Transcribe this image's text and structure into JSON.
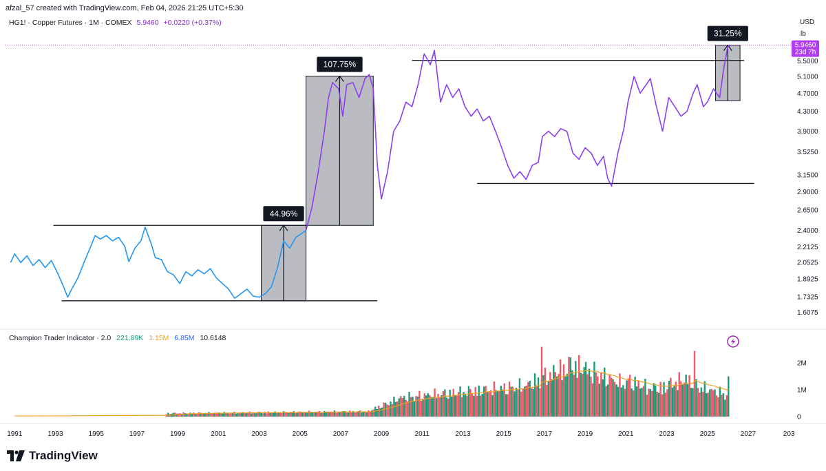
{
  "credit": "afzal_57 created with TradingView.com, Feb 04, 2026 21:25 UTC+5:30",
  "legend": {
    "symbol": "HG1! · Copper Futures · 1M · COMEX",
    "price": "5.9460",
    "change": "+0.0220 (+0.37%)"
  },
  "currency": "USD",
  "unit": "lb",
  "price_tag": {
    "price": "5.9460",
    "countdown": "23d 7h",
    "color": "#b23cf0"
  },
  "indicator_legend": {
    "name": "Champion Trader Indicator · 2.0",
    "v1": "221.89K",
    "v2": "1.15M",
    "v3": "6.85M",
    "v4": "10.6148",
    "v1_color": "#1a9b7a",
    "v2_color": "#f0a020",
    "v3_color": "#2962ff"
  },
  "brand": "TradingView",
  "chart_data": [
    {
      "type": "line",
      "title": "HG1! · Copper Futures · 1M · COMEX",
      "y_scale": "log",
      "y_ticks": [
        "5.9460",
        "5.5000",
        "5.1000",
        "4.7000",
        "4.3000",
        "3.9000",
        "3.5250",
        "3.1500",
        "2.9000",
        "2.6500",
        "2.4000",
        "2.2125",
        "2.0525",
        "1.8925",
        "1.7325",
        "1.6075"
      ],
      "x_ticks": [
        "1991",
        "1993",
        "1995",
        "1997",
        "1999",
        "2001",
        "2003",
        "2005",
        "2007",
        "2009",
        "2011",
        "2013",
        "2015",
        "2017",
        "2019",
        "2021",
        "2023",
        "2025",
        "2027",
        "203"
      ],
      "ylim": [
        1.52,
        6.1
      ],
      "series": [
        {
          "color": "#2196f3",
          "points": [
            [
              1990.8,
              2.05
            ],
            [
              1991.0,
              2.14
            ],
            [
              1991.3,
              2.05
            ],
            [
              1991.6,
              2.12
            ],
            [
              1991.9,
              2.02
            ],
            [
              1992.2,
              2.08
            ],
            [
              1992.5,
              2.0
            ],
            [
              1992.8,
              2.07
            ],
            [
              1993.1,
              1.95
            ],
            [
              1993.4,
              1.82
            ],
            [
              1993.6,
              1.73
            ],
            [
              1993.8,
              1.8
            ],
            [
              1994.1,
              1.9
            ],
            [
              1994.4,
              2.05
            ],
            [
              1994.7,
              2.2
            ],
            [
              1994.95,
              2.34
            ],
            [
              1995.2,
              2.3
            ],
            [
              1995.5,
              2.34
            ],
            [
              1995.8,
              2.28
            ],
            [
              1996.1,
              2.32
            ],
            [
              1996.4,
              2.22
            ],
            [
              1996.6,
              2.06
            ],
            [
              1996.9,
              2.2
            ],
            [
              1997.2,
              2.28
            ],
            [
              1997.4,
              2.44
            ],
            [
              1997.7,
              2.25
            ],
            [
              1997.9,
              2.1
            ],
            [
              1998.2,
              2.08
            ],
            [
              1998.5,
              1.96
            ],
            [
              1998.8,
              1.93
            ],
            [
              1999.1,
              1.85
            ],
            [
              1999.4,
              1.96
            ],
            [
              1999.7,
              1.92
            ],
            [
              2000.0,
              1.98
            ],
            [
              2000.3,
              1.94
            ],
            [
              2000.6,
              1.99
            ],
            [
              2000.9,
              1.9
            ],
            [
              2001.2,
              1.85
            ],
            [
              2001.5,
              1.8
            ],
            [
              2001.8,
              1.72
            ],
            [
              2002.1,
              1.76
            ],
            [
              2002.4,
              1.8
            ],
            [
              2002.7,
              1.74
            ],
            [
              2003.0,
              1.73
            ],
            [
              2003.3,
              1.76
            ],
            [
              2003.6,
              1.82
            ],
            [
              2003.9,
              2.0
            ],
            [
              2004.2,
              2.28
            ],
            [
              2004.5,
              2.2
            ],
            [
              2004.8,
              2.32
            ],
            [
              2005.0,
              2.35
            ],
            [
              2005.3,
              2.4
            ]
          ]
        },
        {
          "color": "#8c3ff0",
          "points": [
            [
              2005.3,
              2.4
            ],
            [
              2005.6,
              2.7
            ],
            [
              2005.9,
              3.2
            ],
            [
              2006.2,
              3.9
            ],
            [
              2006.4,
              4.6
            ],
            [
              2006.6,
              4.95
            ],
            [
              2006.9,
              4.8
            ],
            [
              2007.1,
              4.2
            ],
            [
              2007.3,
              4.9
            ],
            [
              2007.6,
              4.95
            ],
            [
              2007.9,
              4.6
            ],
            [
              2008.2,
              5.05
            ],
            [
              2008.4,
              5.15
            ],
            [
              2008.6,
              4.8
            ],
            [
              2008.8,
              3.3
            ],
            [
              2009.0,
              2.8
            ],
            [
              2009.3,
              3.2
            ],
            [
              2009.6,
              3.9
            ],
            [
              2009.9,
              4.1
            ],
            [
              2010.2,
              4.5
            ],
            [
              2010.5,
              4.4
            ],
            [
              2010.8,
              4.9
            ],
            [
              2011.1,
              5.7
            ],
            [
              2011.4,
              5.4
            ],
            [
              2011.6,
              5.8
            ],
            [
              2011.9,
              4.5
            ],
            [
              2012.2,
              4.9
            ],
            [
              2012.5,
              4.6
            ],
            [
              2012.8,
              4.8
            ],
            [
              2013.1,
              4.4
            ],
            [
              2013.4,
              4.2
            ],
            [
              2013.7,
              4.35
            ],
            [
              2014.0,
              4.1
            ],
            [
              2014.3,
              4.2
            ],
            [
              2014.6,
              3.9
            ],
            [
              2014.9,
              3.6
            ],
            [
              2015.2,
              3.3
            ],
            [
              2015.5,
              3.1
            ],
            [
              2015.8,
              3.2
            ],
            [
              2016.1,
              3.08
            ],
            [
              2016.4,
              3.3
            ],
            [
              2016.7,
              3.35
            ],
            [
              2016.9,
              3.8
            ],
            [
              2017.2,
              3.9
            ],
            [
              2017.5,
              3.8
            ],
            [
              2017.8,
              3.95
            ],
            [
              2018.1,
              3.9
            ],
            [
              2018.4,
              3.5
            ],
            [
              2018.7,
              3.4
            ],
            [
              2019.0,
              3.6
            ],
            [
              2019.3,
              3.5
            ],
            [
              2019.6,
              3.3
            ],
            [
              2019.9,
              3.45
            ],
            [
              2020.1,
              3.1
            ],
            [
              2020.3,
              2.98
            ],
            [
              2020.6,
              3.5
            ],
            [
              2020.9,
              3.95
            ],
            [
              2021.1,
              4.5
            ],
            [
              2021.4,
              5.1
            ],
            [
              2021.7,
              4.7
            ],
            [
              2022.0,
              4.9
            ],
            [
              2022.2,
              5.05
            ],
            [
              2022.5,
              4.4
            ],
            [
              2022.8,
              3.9
            ],
            [
              2023.1,
              4.6
            ],
            [
              2023.4,
              4.4
            ],
            [
              2023.7,
              4.2
            ],
            [
              2024.0,
              4.3
            ],
            [
              2024.3,
              4.7
            ],
            [
              2024.5,
              4.9
            ],
            [
              2024.8,
              4.4
            ],
            [
              2025.0,
              4.5
            ],
            [
              2025.3,
              4.8
            ],
            [
              2025.6,
              4.6
            ],
            [
              2025.8,
              5.3
            ],
            [
              2026.0,
              5.9
            ],
            [
              2026.1,
              5.946
            ]
          ]
        }
      ],
      "measurements": [
        {
          "label": "44.96%",
          "from": 1.7,
          "to": 2.46,
          "x0": 2003.1,
          "x1": 2005.3
        },
        {
          "label": "107.75%",
          "from": 2.46,
          "to": 5.11,
          "x0": 2005.3,
          "x1": 2008.6
        },
        {
          "label": "31.25%",
          "from": 4.53,
          "to": 5.946,
          "x0": 2025.4,
          "x1": 2026.6
        }
      ],
      "levels": [
        {
          "value": 2.46,
          "x0": 1992.9,
          "x1": 2005.3
        },
        {
          "value": 1.7,
          "x0": 1993.3,
          "x1": 2008.8
        },
        {
          "value": 5.52,
          "x0": 2010.5,
          "x1": 2026.8
        },
        {
          "value": 3.02,
          "x0": 2013.7,
          "x1": 2027.3
        }
      ]
    },
    {
      "type": "bar",
      "title": "Champion Trader Indicator · 2.0",
      "y_ticks": [
        "2M",
        "1M",
        "0"
      ],
      "ylim": [
        0,
        2.9
      ],
      "series": [
        {
          "name": "",
          "color": "#1a9b7a"
        },
        {
          "name": "",
          "color": "#f0a020"
        }
      ]
    }
  ]
}
